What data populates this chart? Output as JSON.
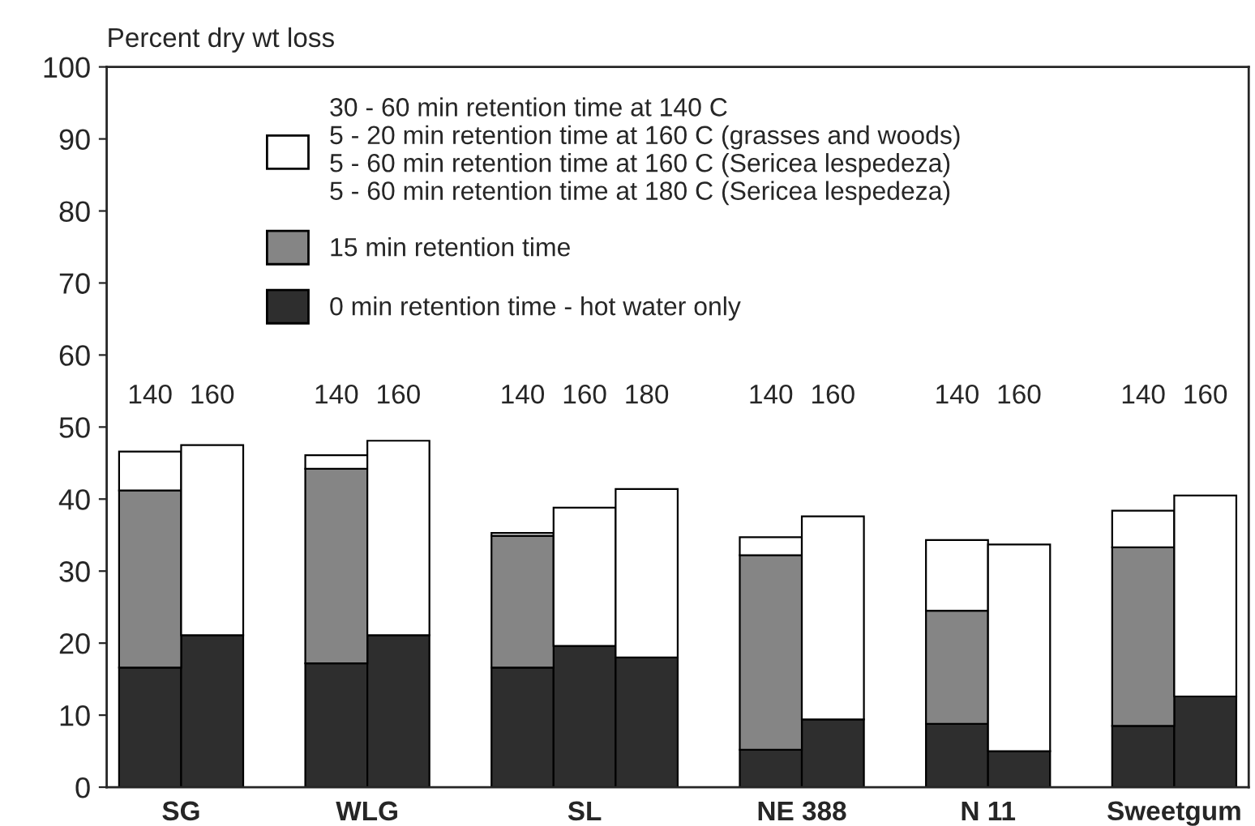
{
  "chart_data": {
    "type": "bar",
    "stacked": true,
    "ylabel": "Percent dry wt loss",
    "categories": [
      "140",
      "160",
      null,
      "140",
      "160",
      null,
      "140",
      "160",
      "180",
      null,
      "140",
      "160",
      null,
      "140",
      "160",
      null,
      "140",
      "160"
    ],
    "series": [
      {
        "name": "0 min retention time - hot water only",
        "color": "#2e2e2e",
        "values": [
          16.6,
          21.1,
          null,
          17.2,
          21.1,
          null,
          16.6,
          19.6,
          18.0,
          null,
          5.2,
          9.4,
          null,
          8.8,
          5.0,
          null,
          8.5,
          12.6
        ]
      },
      {
        "name": "15 min retention time",
        "color": "#858585",
        "values": [
          24.6,
          null,
          null,
          27.0,
          null,
          null,
          18.3,
          null,
          null,
          null,
          27.0,
          null,
          null,
          15.7,
          null,
          null,
          24.8,
          null
        ]
      },
      {
        "name": "30 - 60 min retention time at 140 C\n5 - 20 min retention time at 160 C (grasses and woods)\n5 - 60 min retention time at 160 C (Sericea lespedeza)\n5 - 60 min retention time at 180 C (Sericea lespedeza)",
        "color": "#ffffff",
        "values": [
          5.4,
          26.4,
          null,
          1.9,
          27.0,
          null,
          0.4,
          19.2,
          23.4,
          null,
          2.5,
          28.2,
          null,
          9.8,
          28.7,
          null,
          5.1,
          27.9
        ]
      }
    ],
    "annotations": [
      "SG",
      "WLG",
      "SL",
      "NE 388",
      "N 11",
      "Sweetgum"
    ],
    "ylim": [
      0,
      100
    ],
    "yticks": [
      0,
      10,
      20,
      30,
      40,
      50,
      60,
      70,
      80,
      90,
      100
    ],
    "grid": false,
    "legend": "top left"
  }
}
